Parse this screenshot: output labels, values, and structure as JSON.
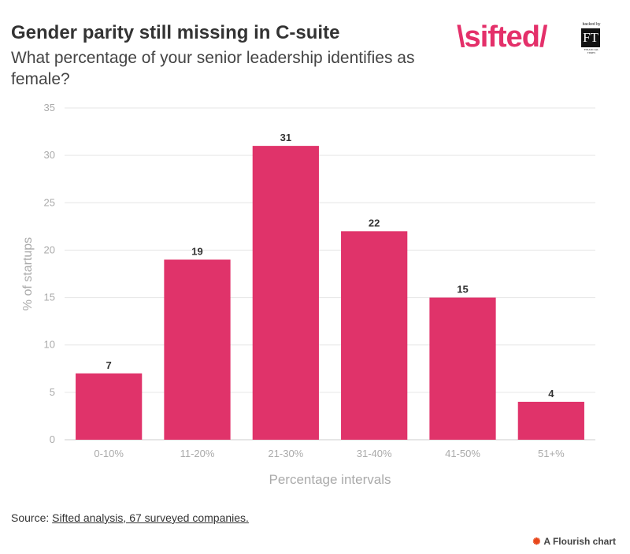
{
  "header": {
    "title": "Gender parity still missing in C-suite",
    "subtitle": "What percentage of your senior leadership identifies as female?"
  },
  "logo": {
    "word": "\\sifted/",
    "backed_by": "backed by",
    "ft": "FT",
    "ft_name": "FINANCIAL TIMES"
  },
  "colors": {
    "bar": "#e0336a",
    "brand": "#e4306a",
    "grid": "#e6e6e6",
    "axis_text": "#aaaaaa"
  },
  "chart_data": {
    "type": "bar",
    "categories": [
      "0-10%",
      "11-20%",
      "21-30%",
      "31-40%",
      "41-50%",
      "51+%"
    ],
    "values": [
      7,
      19,
      31,
      22,
      15,
      4
    ],
    "title": "Gender parity still missing in C-suite",
    "subtitle": "What percentage of your senior leadership identifies as female?",
    "xlabel": "Percentage intervals",
    "ylabel": "% of startups",
    "ylim": [
      0,
      35
    ],
    "yticks": [
      0,
      5,
      10,
      15,
      20,
      25,
      30,
      35
    ],
    "grid": true,
    "data_labels": true
  },
  "footer": {
    "source_prefix": "Source: ",
    "source_link": "Sifted analysis, 67 surveyed companies.",
    "flourish_icon": "flourish-icon",
    "flourish_label": "A Flourish chart"
  }
}
